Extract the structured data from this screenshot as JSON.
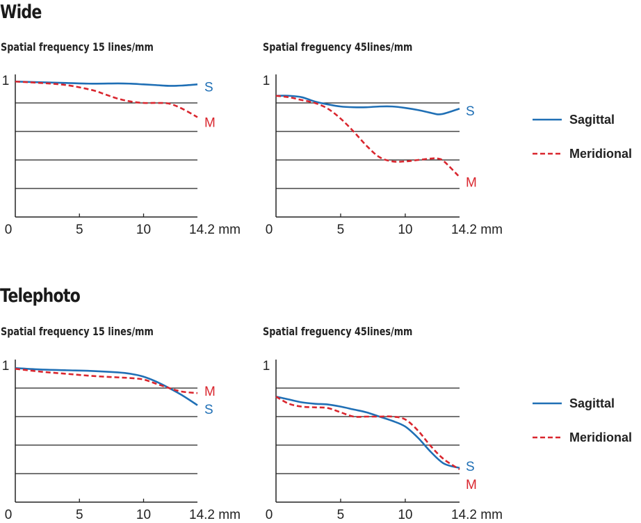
{
  "sections": [
    {
      "title": "Wide"
    },
    {
      "title": "Telephoto"
    }
  ],
  "legend": {
    "items": [
      {
        "name": "Sagittal",
        "style": "solid",
        "color": "#1f6fb5"
      },
      {
        "name": "Meridional",
        "style": "dashed",
        "color": "#d9262e"
      }
    ]
  },
  "colors": {
    "sagittal": "#1f6fb5",
    "meridional": "#d9262e",
    "grid": "#222222"
  },
  "chart_data": [
    {
      "type": "line",
      "section": "Wide",
      "title": "Spatial frequency 15 lines/mm",
      "xlabel": "mm",
      "xlim": [
        0,
        14.2
      ],
      "ylim": [
        0,
        1
      ],
      "xticks": [
        "0",
        "5",
        "10",
        "14.2 mm"
      ],
      "xtick_values": [
        0,
        5,
        10,
        14.2
      ],
      "yticks": [
        "1"
      ],
      "grid": true,
      "gridlines": [
        0.2,
        0.4,
        0.6,
        0.8
      ],
      "series": [
        {
          "name": "Sagittal",
          "label": "S",
          "x": [
            0,
            2,
            4,
            6,
            8,
            9,
            10,
            11,
            12,
            13,
            14.2
          ],
          "y": [
            0.95,
            0.945,
            0.94,
            0.935,
            0.937,
            0.935,
            0.93,
            0.925,
            0.92,
            0.922,
            0.93
          ]
        },
        {
          "name": "Meridional",
          "label": "M",
          "x": [
            0,
            2,
            4,
            6,
            7,
            8,
            9,
            10,
            11,
            12,
            13,
            14.2
          ],
          "y": [
            0.95,
            0.94,
            0.925,
            0.89,
            0.86,
            0.83,
            0.81,
            0.8,
            0.8,
            0.795,
            0.76,
            0.7
          ]
        }
      ]
    },
    {
      "type": "line",
      "section": "Wide",
      "title": "Spatial freguency 45lines/mm",
      "xlabel": "mm",
      "xlim": [
        0,
        14.2
      ],
      "ylim": [
        0,
        1
      ],
      "xticks": [
        "0",
        "5",
        "10",
        "14.2 mm"
      ],
      "xtick_values": [
        0,
        5,
        10,
        14.2
      ],
      "yticks": [
        "1"
      ],
      "grid": true,
      "gridlines": [
        0.2,
        0.4,
        0.6,
        0.8
      ],
      "series": [
        {
          "name": "Sagittal",
          "label": "S",
          "x": [
            0,
            1,
            2,
            3,
            4,
            5,
            6,
            7,
            8,
            9,
            10,
            11,
            12,
            12.5,
            13,
            14.2
          ],
          "y": [
            0.85,
            0.85,
            0.84,
            0.81,
            0.79,
            0.775,
            0.77,
            0.77,
            0.775,
            0.775,
            0.765,
            0.75,
            0.73,
            0.72,
            0.725,
            0.76
          ]
        },
        {
          "name": "Meridional",
          "label": "M",
          "x": [
            0,
            1,
            2,
            3,
            4,
            5,
            6,
            7,
            8,
            9,
            10,
            11,
            12,
            12.5,
            13,
            14.2
          ],
          "y": [
            0.85,
            0.84,
            0.82,
            0.8,
            0.76,
            0.69,
            0.6,
            0.5,
            0.42,
            0.39,
            0.39,
            0.4,
            0.41,
            0.41,
            0.39,
            0.28
          ]
        }
      ]
    },
    {
      "type": "line",
      "section": "Telephoto",
      "title": "Spatial frequency 15 lines/mm",
      "xlabel": "mm",
      "xlim": [
        0,
        14.2
      ],
      "ylim": [
        0,
        1
      ],
      "xticks": [
        "0",
        "5",
        "10",
        "14.2 mm"
      ],
      "xtick_values": [
        0,
        5,
        10,
        14.2
      ],
      "yticks": [
        "1"
      ],
      "grid": true,
      "gridlines": [
        0.2,
        0.4,
        0.6,
        0.8
      ],
      "series": [
        {
          "name": "Sagittal",
          "label": "S",
          "x": [
            0,
            2,
            4,
            6,
            8,
            9,
            10,
            11,
            12,
            13,
            14.2
          ],
          "y": [
            0.94,
            0.93,
            0.925,
            0.92,
            0.91,
            0.9,
            0.88,
            0.845,
            0.8,
            0.75,
            0.68
          ]
        },
        {
          "name": "Meridional",
          "label": "M",
          "x": [
            0,
            2,
            4,
            6,
            8,
            9,
            10,
            11,
            12,
            13,
            14.2
          ],
          "y": [
            0.935,
            0.915,
            0.9,
            0.885,
            0.875,
            0.87,
            0.86,
            0.83,
            0.8,
            0.775,
            0.765
          ]
        }
      ]
    },
    {
      "type": "line",
      "section": "Telephoto",
      "title": "Spatial freguency 45lines/mm",
      "xlabel": "mm",
      "xlim": [
        0,
        14.2
      ],
      "ylim": [
        0,
        1
      ],
      "xticks": [
        "0",
        "5",
        "10",
        "14.2 mm"
      ],
      "xtick_values": [
        0,
        5,
        10,
        14.2
      ],
      "yticks": [
        "1"
      ],
      "grid": true,
      "gridlines": [
        0.2,
        0.4,
        0.6,
        0.8
      ],
      "series": [
        {
          "name": "Sagittal",
          "label": "S",
          "x": [
            0,
            1,
            2,
            3,
            4,
            5,
            6,
            7,
            8,
            9,
            10,
            11,
            12,
            13,
            14.2
          ],
          "y": [
            0.74,
            0.72,
            0.7,
            0.69,
            0.685,
            0.67,
            0.65,
            0.63,
            0.6,
            0.57,
            0.53,
            0.45,
            0.35,
            0.27,
            0.24
          ]
        },
        {
          "name": "Meridional",
          "label": "M",
          "x": [
            0,
            1,
            2,
            3,
            4,
            5,
            6,
            7,
            8,
            9,
            10,
            11,
            12,
            13,
            14.2
          ],
          "y": [
            0.74,
            0.69,
            0.67,
            0.665,
            0.66,
            0.63,
            0.6,
            0.6,
            0.6,
            0.6,
            0.58,
            0.5,
            0.39,
            0.3,
            0.23
          ]
        }
      ]
    }
  ]
}
